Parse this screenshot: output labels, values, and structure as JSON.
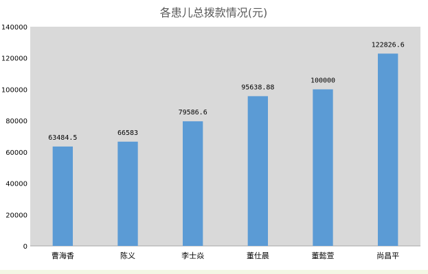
{
  "chart_data": {
    "type": "bar",
    "title": "各患儿总拨款情况(元)",
    "xlabel": "",
    "ylabel": "",
    "categories": [
      "曹海香",
      "陈义",
      "李士焱",
      "董仕晨",
      "董懿萱",
      "尚昌平"
    ],
    "values": [
      63484.5,
      66583,
      79586.6,
      95638.88,
      100000,
      122826.6
    ],
    "data_labels": [
      "63484.5",
      "66583",
      "79586.6",
      "95638.88",
      "100000",
      "122826.6"
    ],
    "ylim": [
      0,
      140000
    ],
    "yticks": [
      0,
      20000,
      40000,
      60000,
      80000,
      100000,
      120000,
      140000
    ],
    "grid": false,
    "legend": "none",
    "colors": {
      "bar": "#5b9bd5",
      "plot_background": "#d9d9d9",
      "title_text": "#595959",
      "axis_text": "#000000"
    }
  }
}
